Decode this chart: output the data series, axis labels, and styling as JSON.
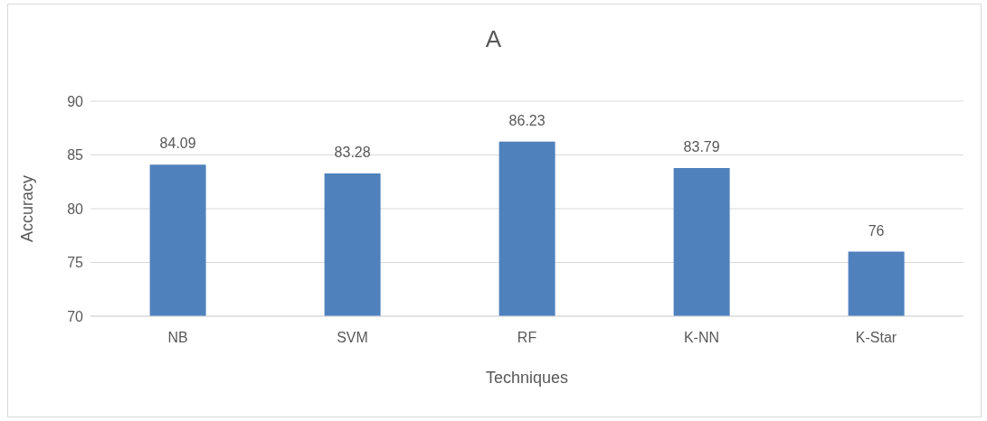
{
  "chart_data": {
    "type": "bar",
    "title": "A",
    "xlabel": "Techniques",
    "ylabel": "Accuracy",
    "categories": [
      "NB",
      "SVM",
      "RF",
      "K-NN",
      "K-Star"
    ],
    "values": [
      84.09,
      83.28,
      86.23,
      83.79,
      76
    ],
    "color": "#4f81bd",
    "ylim": [
      70,
      90
    ],
    "yticks": [
      70,
      75,
      80,
      85,
      90
    ],
    "grid": "y",
    "data_labels": true
  }
}
